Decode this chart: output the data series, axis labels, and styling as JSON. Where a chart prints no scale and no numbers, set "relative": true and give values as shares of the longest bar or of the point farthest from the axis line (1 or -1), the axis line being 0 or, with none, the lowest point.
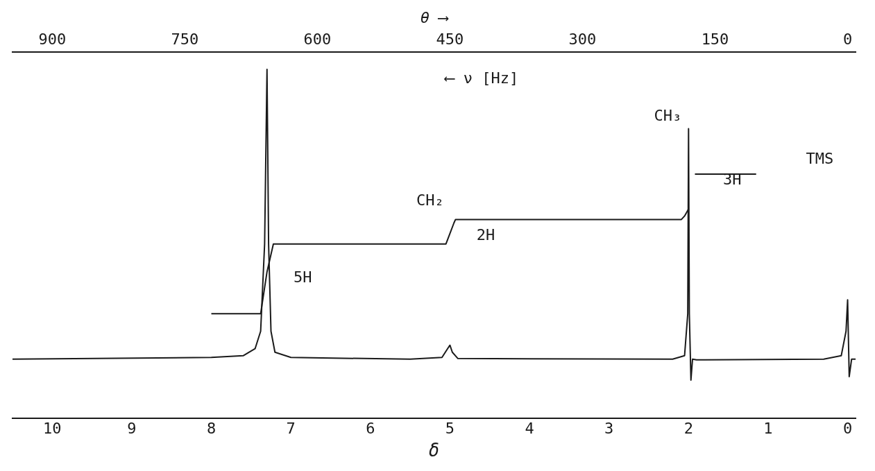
{
  "chart_data": {
    "type": "line",
    "relative": true,
    "xlabel": "δ",
    "x2label": "θ ⟶",
    "xlim": [
      10.5,
      -0.1
    ],
    "xticks": [
      10,
      9,
      8,
      7,
      6,
      5,
      4,
      3,
      2,
      1,
      0
    ],
    "x2lim": [
      945,
      -9
    ],
    "x2ticks": [
      900,
      750,
      600,
      450,
      300,
      150,
      0
    ],
    "grid": false,
    "legend": false,
    "series": [
      {
        "color": "#1a1a1a",
        "x": [
          10.5,
          8.0,
          7.6,
          7.45,
          7.38,
          7.33,
          7.3,
          7.28,
          7.25,
          7.2,
          7.0,
          5.5,
          5.1,
          5.03,
          5.0,
          4.97,
          4.9,
          2.2,
          2.05,
          2.01,
          2.0,
          1.99,
          1.97,
          1.95,
          1.9,
          0.3,
          0.08,
          0.02,
          0.0,
          -0.02,
          -0.05,
          -0.1
        ],
        "values": [
          0.17,
          0.175,
          0.18,
          0.2,
          0.25,
          0.5,
          1.0,
          0.5,
          0.25,
          0.19,
          0.175,
          0.17,
          0.175,
          0.2,
          0.21,
          0.19,
          0.172,
          0.17,
          0.18,
          0.3,
          0.83,
          0.3,
          0.11,
          0.17,
          0.168,
          0.17,
          0.18,
          0.25,
          0.34,
          0.12,
          0.17,
          0.17
        ]
      },
      {
        "color": "#1a1a1a",
        "x": [
          8.0,
          7.38,
          7.3,
          7.22,
          5.05,
          5.0,
          4.95,
          4.93,
          2.09,
          2.05,
          2.0,
          1.95,
          1.92,
          1.15
        ],
        "values": [
          0.3,
          0.3,
          0.42,
          0.5,
          0.5,
          0.53,
          0.56,
          0.57,
          0.57,
          0.58,
          0.6,
          null,
          0.7,
          0.7
        ]
      }
    ],
    "annotations": [
      "⟵ ν [Hz]",
      {
        "text": "CH₃",
        "x": 2.0,
        "y": 0.83
      },
      "CH₂",
      "TMS",
      "5H",
      "2H",
      "3H"
    ]
  }
}
